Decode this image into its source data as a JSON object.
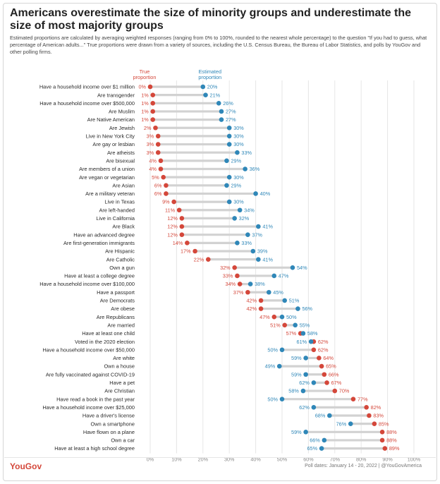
{
  "header": {
    "title": "Americans overestimate the size of minority groups and underestimate the size of most majority groups",
    "subtitle": "Estimated proportions are calculated by averaging weighted responses (ranging from 0% to 100%, rounded to the nearest whole percentage) to the question \"If you had to guess, what percentage of American adults...\" True proportions were drawn from a variety of sources, including the U.S. Census Bureau, the Bureau of Labor Statistics, and polls by YouGov and other polling firms."
  },
  "footer": {
    "logo": "YouGov",
    "poll_date": "Poll dates: January 14 - 20, 2022 | @YouGovAmerica"
  },
  "colors": {
    "true": "#d4473a",
    "estimated": "#2f87b8",
    "connector": "#d2d2d2",
    "grid": "#e6e6e6"
  },
  "chart_data": {
    "type": "dot_plot",
    "x_range": [
      0,
      100
    ],
    "x_ticks": [
      "0%",
      "10%",
      "20%",
      "30%",
      "40%",
      "50%",
      "60%",
      "70%",
      "80%",
      "90%",
      "100%"
    ],
    "grid": true,
    "series": [
      {
        "key": "true",
        "name": "True proportion"
      },
      {
        "key": "estimated",
        "name": "Estimated proportion"
      }
    ],
    "rows": [
      {
        "label": "Have a household income over $1 million",
        "true": 0,
        "estimated": 20
      },
      {
        "label": "Are transgender",
        "true": 1,
        "estimated": 21
      },
      {
        "label": "Have a household income over $500,000",
        "true": 1,
        "estimated": 26
      },
      {
        "label": "Are Muslim",
        "true": 1,
        "estimated": 27
      },
      {
        "label": "Are Native American",
        "true": 1,
        "estimated": 27
      },
      {
        "label": "Are Jewish",
        "true": 2,
        "estimated": 30
      },
      {
        "label": "Live in New York City",
        "true": 3,
        "estimated": 30
      },
      {
        "label": "Are gay or lesbian",
        "true": 3,
        "estimated": 30
      },
      {
        "label": "Are atheists",
        "true": 3,
        "estimated": 33
      },
      {
        "label": "Are bisexual",
        "true": 4,
        "estimated": 29
      },
      {
        "label": "Are members of a union",
        "true": 4,
        "estimated": 36
      },
      {
        "label": "Are vegan or vegetarian",
        "true": 5,
        "estimated": 30
      },
      {
        "label": "Are Asian",
        "true": 6,
        "estimated": 29
      },
      {
        "label": "Are a military veteran",
        "true": 6,
        "estimated": 40
      },
      {
        "label": "Live in Texas",
        "true": 9,
        "estimated": 30
      },
      {
        "label": "Are left-handed",
        "true": 11,
        "estimated": 34
      },
      {
        "label": "Live in California",
        "true": 12,
        "estimated": 32
      },
      {
        "label": "Are Black",
        "true": 12,
        "estimated": 41
      },
      {
        "label": "Have an advanced degree",
        "true": 12,
        "estimated": 37
      },
      {
        "label": "Are first-generation immigrants",
        "true": 14,
        "estimated": 33
      },
      {
        "label": "Are Hispanic",
        "true": 17,
        "estimated": 39
      },
      {
        "label": "Are Catholic",
        "true": 22,
        "estimated": 41
      },
      {
        "label": "Own a gun",
        "true": 32,
        "estimated": 54
      },
      {
        "label": "Have at least a college degree",
        "true": 33,
        "estimated": 47
      },
      {
        "label": "Have a household income over $100,000",
        "true": 34,
        "estimated": 38
      },
      {
        "label": "Have a passport",
        "true": 37,
        "estimated": 45
      },
      {
        "label": "Are Democrats",
        "true": 42,
        "estimated": 51
      },
      {
        "label": "Are obese",
        "true": 42,
        "estimated": 56
      },
      {
        "label": "Are Republicans",
        "true": 47,
        "estimated": 50
      },
      {
        "label": "Are married",
        "true": 51,
        "estimated": 55
      },
      {
        "label": "Have at least one child",
        "true": 57,
        "estimated": 58
      },
      {
        "label": "Voted in the 2020 election",
        "true": 62,
        "estimated": 61
      },
      {
        "label": "Have a household income over $50,000",
        "true": 62,
        "estimated": 50
      },
      {
        "label": "Are white",
        "true": 64,
        "estimated": 59
      },
      {
        "label": "Own a house",
        "true": 65,
        "estimated": 49
      },
      {
        "label": "Are fully vaccinated against COVID-19",
        "true": 66,
        "estimated": 59
      },
      {
        "label": "Have a pet",
        "true": 67,
        "estimated": 62
      },
      {
        "label": "Are Christian",
        "true": 70,
        "estimated": 58
      },
      {
        "label": "Have read a book in the past year",
        "true": 77,
        "estimated": 50
      },
      {
        "label": "Have a household income over $25,000",
        "true": 82,
        "estimated": 62
      },
      {
        "label": "Have a driver's license",
        "true": 83,
        "estimated": 68
      },
      {
        "label": "Own a smartphone",
        "true": 85,
        "estimated": 76
      },
      {
        "label": "Have flown on a plane",
        "true": 88,
        "estimated": 59
      },
      {
        "label": "Own a car",
        "true": 88,
        "estimated": 66
      },
      {
        "label": "Have at least a high school degree",
        "true": 89,
        "estimated": 65
      }
    ]
  }
}
